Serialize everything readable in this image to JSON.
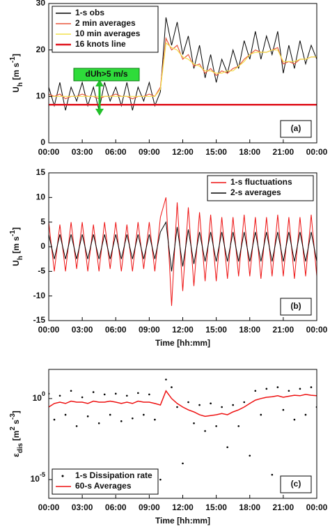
{
  "chart_data": [
    {
      "type": "line",
      "panel_label": "(a)",
      "annotation": "dUh>5 m/s",
      "legend": "upper left",
      "ylabel": [
        {
          "text": "U"
        },
        {
          "text": "h",
          "shift": "sub"
        },
        {
          "text": " [m s"
        },
        {
          "text": "-1",
          "shift": "sup"
        },
        {
          "text": "]"
        }
      ],
      "xlim": [
        0,
        24
      ],
      "xticks": [
        {
          "value": 0,
          "label": "00:00"
        },
        {
          "value": 3,
          "label": "03:00"
        },
        {
          "value": 6,
          "label": "06:00"
        },
        {
          "value": 9,
          "label": "09:00"
        },
        {
          "value": 12,
          "label": "12:00"
        },
        {
          "value": 15,
          "label": "15:00"
        },
        {
          "value": 18,
          "label": "18:00"
        },
        {
          "value": 21,
          "label": "21:00"
        },
        {
          "value": 24,
          "label": "00:00"
        }
      ],
      "ylim": [
        0,
        30
      ],
      "yticks": [
        0,
        10,
        20,
        30
      ],
      "x": [
        0,
        0.5,
        1,
        1.5,
        2,
        2.5,
        3,
        3.5,
        4,
        4.5,
        5,
        5.5,
        6,
        6.5,
        7,
        7.5,
        8,
        8.5,
        9,
        9.5,
        10,
        10.5,
        11,
        11.5,
        12,
        12.5,
        13,
        13.5,
        14,
        14.5,
        15,
        15.5,
        16,
        16.5,
        17,
        17.5,
        18,
        18.5,
        19,
        19.5,
        20,
        20.5,
        21,
        21.5,
        22,
        22.5,
        23,
        23.5,
        24
      ],
      "series": [
        {
          "name": "1-s obs",
          "color": "#000000",
          "width": 1,
          "values": [
            12,
            8,
            13,
            7,
            12,
            9,
            13,
            8,
            12,
            7,
            13,
            9,
            12,
            8,
            13,
            7,
            12,
            9,
            13,
            8,
            11,
            27,
            21,
            26,
            19,
            23,
            16,
            21,
            14,
            19,
            13,
            18,
            15,
            20,
            16,
            22,
            18,
            24,
            18,
            23,
            19,
            24,
            15,
            21,
            16,
            22,
            17,
            21,
            18
          ]
        },
        {
          "name": "2 min averages",
          "color": "#e8553a",
          "width": 1.2,
          "values": [
            10.5,
            10,
            10.5,
            9.5,
            10,
            10,
            10.5,
            10,
            10,
            9.5,
            10,
            10,
            10.5,
            10,
            10,
            9.5,
            10,
            10,
            10.5,
            10,
            12,
            22.5,
            20,
            21,
            18,
            19,
            16.5,
            17,
            15,
            16,
            14.5,
            15.5,
            15,
            16,
            16.5,
            18,
            19,
            20,
            19.5,
            19.5,
            20,
            20.5,
            17,
            17.5,
            17,
            18,
            18,
            18.5,
            18.5
          ]
        },
        {
          "name": "10 min averages",
          "color": "#f2e04a",
          "width": 1.2,
          "values": [
            10,
            10,
            10,
            10,
            10,
            10,
            10,
            10,
            10,
            10,
            10,
            10,
            10,
            10,
            10,
            10,
            10,
            10,
            10,
            10,
            11.5,
            21.5,
            20.5,
            20,
            18.5,
            18,
            17,
            16.5,
            15.5,
            15.5,
            15,
            15,
            15.5,
            15.5,
            16.5,
            17.5,
            19,
            19.5,
            19.5,
            19.5,
            20,
            20,
            17.5,
            17.5,
            17.5,
            18,
            18,
            18.5,
            18.5
          ]
        },
        {
          "name": "16 knots line",
          "color": "#e0141e",
          "width": 2.5,
          "x": [
            0,
            24
          ],
          "values": [
            8.2,
            8.2
          ]
        }
      ]
    },
    {
      "type": "line",
      "panel_label": "(b)",
      "legend": "upper right",
      "xlabel": "Time [hh:mm]",
      "ylabel": [
        {
          "text": "U"
        },
        {
          "text": "h",
          "shift": "sub"
        },
        {
          "text": " [m s"
        },
        {
          "text": "-1",
          "shift": "sup"
        },
        {
          "text": "]"
        }
      ],
      "xlim": [
        0,
        24
      ],
      "xticks": [
        {
          "value": 0,
          "label": "00:00"
        },
        {
          "value": 3,
          "label": "03:00"
        },
        {
          "value": 6,
          "label": "06:00"
        },
        {
          "value": 9,
          "label": "09:00"
        },
        {
          "value": 12,
          "label": "12:00"
        },
        {
          "value": 15,
          "label": "15:00"
        },
        {
          "value": 18,
          "label": "18:00"
        },
        {
          "value": 21,
          "label": "21:00"
        },
        {
          "value": 24,
          "label": "00:00"
        }
      ],
      "ylim": [
        -15,
        15
      ],
      "yticks": [
        -15,
        -10,
        -5,
        0,
        5,
        10,
        15
      ],
      "x": [
        0,
        0.5,
        1,
        1.5,
        2,
        2.5,
        3,
        3.5,
        4,
        4.5,
        5,
        5.5,
        6,
        6.5,
        7,
        7.5,
        8,
        8.5,
        9,
        9.5,
        10,
        10.5,
        11,
        11.5,
        12,
        12.5,
        13,
        13.5,
        14,
        14.5,
        15,
        15.5,
        16,
        16.5,
        17,
        17.5,
        18,
        18.5,
        19,
        19.5,
        20,
        20.5,
        21,
        21.5,
        22,
        22.5,
        23,
        23.5,
        24
      ],
      "series": [
        {
          "name": "1-s fluctuations",
          "color": "#ee1111",
          "width": 1,
          "values": [
            5,
            -5,
            4.5,
            -5,
            5,
            -4.5,
            5,
            -5,
            4.5,
            -5,
            5,
            -4.5,
            5,
            -5,
            4.5,
            -5,
            5,
            -4.5,
            5,
            -5,
            6,
            10,
            -12,
            9,
            -9,
            8,
            -8,
            7,
            -7,
            6.5,
            -7,
            6,
            -6.5,
            6,
            -6,
            6.5,
            -6,
            6,
            -6.5,
            6,
            -6,
            6.5,
            -6,
            6,
            -6.5,
            6,
            -6,
            6.5,
            -6
          ]
        },
        {
          "name": "2-s averages",
          "color": "#000000",
          "width": 1,
          "values": [
            2.5,
            -2.5,
            2.5,
            -2.5,
            2.5,
            -2.5,
            2.5,
            -2.5,
            2.5,
            -2.5,
            2.5,
            -2.5,
            2.5,
            -2.5,
            2.5,
            -2.5,
            2.5,
            -2.5,
            2.5,
            -2.5,
            3,
            5,
            -5,
            4,
            -4,
            3.5,
            -3.5,
            3,
            -3,
            3,
            -3,
            3,
            -3,
            3,
            -3,
            3,
            -3,
            3,
            -3,
            3,
            -3,
            3,
            -3,
            3,
            -3,
            3,
            -3,
            3,
            -3
          ]
        }
      ]
    },
    {
      "type": "scatter",
      "panel_label": "(c)",
      "legend": "lower left",
      "xlabel": "Time [hh:mm]",
      "log_y": true,
      "ylabel": [
        {
          "text": "ε"
        },
        {
          "text": "dis",
          "shift": "sub"
        },
        {
          "text": " [m"
        },
        {
          "text": "2",
          "shift": "sup"
        },
        {
          "text": " s"
        },
        {
          "text": "-3",
          "shift": "sup"
        },
        {
          "text": "]"
        }
      ],
      "xlim": [
        0,
        24
      ],
      "xticks": [
        {
          "value": 0,
          "label": "00:00"
        },
        {
          "value": 3,
          "label": "03:00"
        },
        {
          "value": 6,
          "label": "06:00"
        },
        {
          "value": 9,
          "label": "09:00"
        },
        {
          "value": 12,
          "label": "12:00"
        },
        {
          "value": 15,
          "label": "15:00"
        },
        {
          "value": 18,
          "label": "18:00"
        },
        {
          "value": 21,
          "label": "21:00"
        },
        {
          "value": 24,
          "label": "00:00"
        }
      ],
      "ylim": [
        7e-07,
        63
      ],
      "yticks": [
        {
          "value": 1e-05,
          "label": "10^-5"
        },
        {
          "value": 1,
          "label": "10^0"
        }
      ],
      "x": [
        0,
        0.5,
        1,
        1.5,
        2,
        2.5,
        3,
        3.5,
        4,
        4.5,
        5,
        5.5,
        6,
        6.5,
        7,
        7.5,
        8,
        8.5,
        9,
        9.5,
        10,
        10.5,
        11,
        11.5,
        12,
        12.5,
        13,
        13.5,
        14,
        14.5,
        15,
        15.5,
        16,
        16.5,
        17,
        17.5,
        18,
        18.5,
        19,
        19.5,
        20,
        20.5,
        21,
        21.5,
        22,
        22.5,
        23,
        23.5,
        24
      ],
      "series": [
        {
          "name": "1-s Dissipation rate",
          "color": "#000000",
          "mark": "dot",
          "values": [
            2,
            0.05,
            1.5,
            0.1,
            3,
            0.02,
            1.2,
            0.08,
            2.5,
            0.03,
            1.8,
            0.1,
            2,
            0.04,
            1.5,
            0.06,
            2.2,
            0.1,
            1.8,
            0.05,
            1e-05,
            15,
            5,
            0.3,
            0.0001,
            0.6,
            0.03,
            0.4,
            0.01,
            0.5,
            0.02,
            0.3,
            0.001,
            0.4,
            0.02,
            0.6,
            0.0003,
            3,
            0.1,
            4,
            2e-05,
            5,
            0.2,
            3,
            0.05,
            4,
            0.1,
            5,
            0.3
          ]
        },
        {
          "name": "60-s Averages",
          "color": "#ee1111",
          "mark": "line",
          "width": 1.5,
          "values": [
            0.3,
            0.5,
            0.6,
            0.5,
            0.7,
            0.6,
            0.6,
            0.5,
            0.7,
            0.6,
            0.6,
            0.7,
            0.6,
            0.5,
            0.6,
            0.5,
            0.7,
            0.6,
            0.6,
            0.5,
            0.4,
            3,
            1,
            0.5,
            0.3,
            0.2,
            0.15,
            0.1,
            0.08,
            0.09,
            0.1,
            0.12,
            0.1,
            0.15,
            0.2,
            0.3,
            0.5,
            0.8,
            1,
            1.2,
            1.3,
            1.5,
            1.2,
            1.4,
            1.6,
            1.5,
            1.8,
            1.6,
            1.5
          ]
        }
      ]
    }
  ]
}
